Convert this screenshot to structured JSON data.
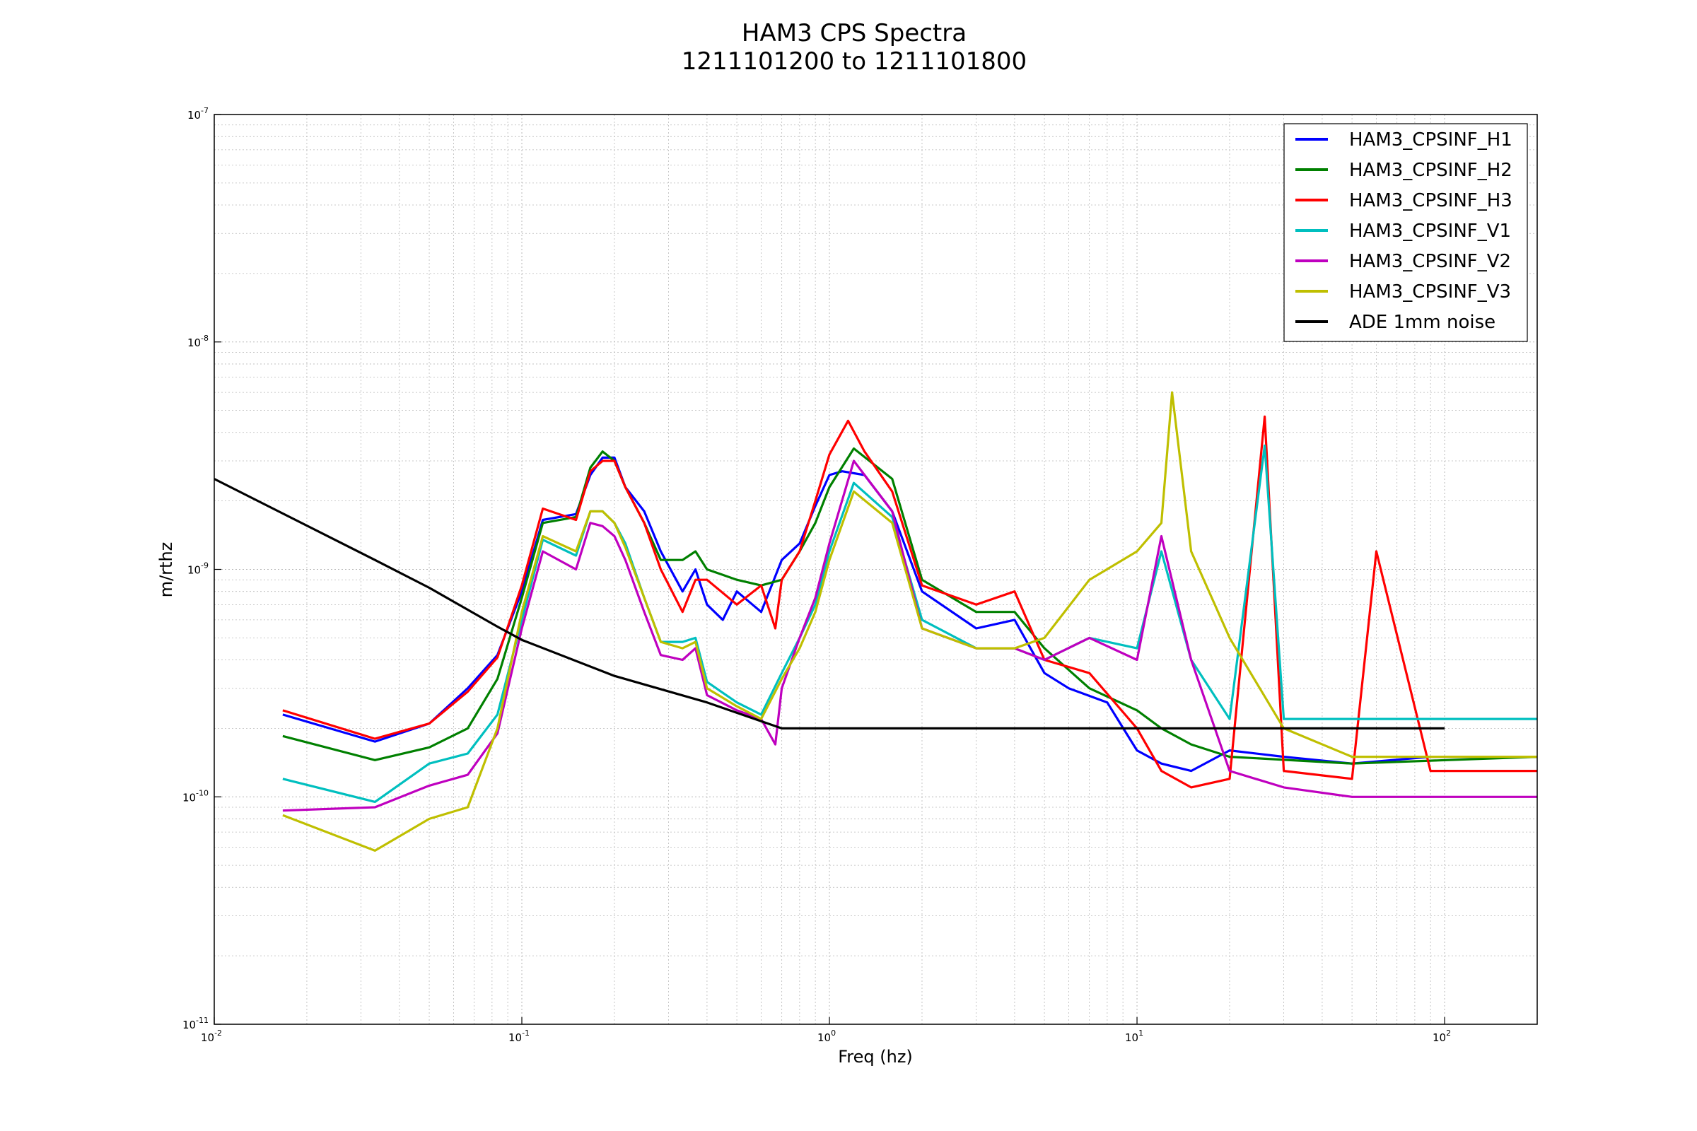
{
  "chart_data": {
    "type": "line",
    "title": "HAM3 CPS Spectra",
    "subtitle": "1211101200 to 1211101800",
    "xlabel": "Freq (hz)",
    "ylabel": "m/rthz",
    "xscale": "log",
    "yscale": "log",
    "xlim": [
      0.01,
      200
    ],
    "ylim": [
      1e-11,
      1e-07
    ],
    "grid": true,
    "legend_position": "top-right",
    "x_ticks": [
      {
        "value": 0.01,
        "base": "10",
        "exp": "-2"
      },
      {
        "value": 0.1,
        "base": "10",
        "exp": "-1"
      },
      {
        "value": 1,
        "base": "10",
        "exp": "0"
      },
      {
        "value": 10,
        "base": "10",
        "exp": "1"
      },
      {
        "value": 100,
        "base": "10",
        "exp": "2"
      }
    ],
    "y_ticks": [
      {
        "value": 1e-11,
        "base": "10",
        "exp": "-11"
      },
      {
        "value": 1e-10,
        "base": "10",
        "exp": "-10"
      },
      {
        "value": 1e-09,
        "base": "10",
        "exp": "-9"
      },
      {
        "value": 1e-08,
        "base": "10",
        "exp": "-8"
      },
      {
        "value": 1e-07,
        "base": "10",
        "exp": "-7"
      }
    ],
    "series": [
      {
        "name": "HAM3_CPSINF_H1",
        "color": "#0000ff",
        "points": [
          [
            0.0167,
            2.3e-10
          ],
          [
            0.0333,
            1.75e-10
          ],
          [
            0.05,
            2.1e-10
          ],
          [
            0.0667,
            3e-10
          ],
          [
            0.0833,
            4.2e-10
          ],
          [
            0.1,
            8e-10
          ],
          [
            0.117,
            1.65e-09
          ],
          [
            0.15,
            1.75e-09
          ],
          [
            0.167,
            2.6e-09
          ],
          [
            0.183,
            3.1e-09
          ],
          [
            0.2,
            3.1e-09
          ],
          [
            0.217,
            2.3e-09
          ],
          [
            0.25,
            1.8e-09
          ],
          [
            0.283,
            1.2e-09
          ],
          [
            0.333,
            8e-10
          ],
          [
            0.367,
            1e-09
          ],
          [
            0.4,
            7e-10
          ],
          [
            0.45,
            6e-10
          ],
          [
            0.5,
            8e-10
          ],
          [
            0.6,
            6.5e-10
          ],
          [
            0.7,
            1.1e-09
          ],
          [
            0.8,
            1.3e-09
          ],
          [
            0.9,
            1.9e-09
          ],
          [
            1.0,
            2.6e-09
          ],
          [
            1.1,
            2.7e-09
          ],
          [
            1.3,
            2.6e-09
          ],
          [
            1.6,
            1.8e-09
          ],
          [
            2.0,
            8e-10
          ],
          [
            3.0,
            5.5e-10
          ],
          [
            4.0,
            6e-10
          ],
          [
            5.0,
            3.5e-10
          ],
          [
            6.0,
            3e-10
          ],
          [
            8.0,
            2.6e-10
          ],
          [
            10.0,
            1.6e-10
          ],
          [
            12.0,
            1.4e-10
          ],
          [
            15.0,
            1.3e-10
          ],
          [
            20.0,
            1.6e-10
          ],
          [
            30.0,
            1.5e-10
          ],
          [
            50.0,
            1.4e-10
          ],
          [
            90.0,
            1.5e-10
          ],
          [
            200.0,
            1.5e-10
          ]
        ]
      },
      {
        "name": "HAM3_CPSINF_H2",
        "color": "#008000",
        "points": [
          [
            0.0167,
            1.85e-10
          ],
          [
            0.0333,
            1.45e-10
          ],
          [
            0.05,
            1.65e-10
          ],
          [
            0.0667,
            2e-10
          ],
          [
            0.0833,
            3.3e-10
          ],
          [
            0.1,
            7.5e-10
          ],
          [
            0.117,
            1.6e-09
          ],
          [
            0.15,
            1.7e-09
          ],
          [
            0.167,
            2.8e-09
          ],
          [
            0.183,
            3.3e-09
          ],
          [
            0.2,
            3e-09
          ],
          [
            0.217,
            2.3e-09
          ],
          [
            0.25,
            1.6e-09
          ],
          [
            0.283,
            1.1e-09
          ],
          [
            0.333,
            1.1e-09
          ],
          [
            0.367,
            1.2e-09
          ],
          [
            0.4,
            1e-09
          ],
          [
            0.5,
            9e-10
          ],
          [
            0.6,
            8.5e-10
          ],
          [
            0.7,
            9e-10
          ],
          [
            0.8,
            1.2e-09
          ],
          [
            0.9,
            1.6e-09
          ],
          [
            1.0,
            2.3e-09
          ],
          [
            1.2,
            3.4e-09
          ],
          [
            1.6,
            2.5e-09
          ],
          [
            2.0,
            9e-10
          ],
          [
            3.0,
            6.5e-10
          ],
          [
            4.0,
            6.5e-10
          ],
          [
            5.0,
            4.5e-10
          ],
          [
            7.0,
            3e-10
          ],
          [
            10.0,
            2.4e-10
          ],
          [
            12.0,
            2e-10
          ],
          [
            15.0,
            1.7e-10
          ],
          [
            20.0,
            1.5e-10
          ],
          [
            50.0,
            1.4e-10
          ],
          [
            200.0,
            1.5e-10
          ]
        ]
      },
      {
        "name": "HAM3_CPSINF_H3",
        "color": "#ff0000",
        "points": [
          [
            0.0167,
            2.4e-10
          ],
          [
            0.0333,
            1.8e-10
          ],
          [
            0.05,
            2.1e-10
          ],
          [
            0.0667,
            2.9e-10
          ],
          [
            0.0833,
            4.1e-10
          ],
          [
            0.1,
            8.5e-10
          ],
          [
            0.117,
            1.85e-09
          ],
          [
            0.15,
            1.65e-09
          ],
          [
            0.167,
            2.7e-09
          ],
          [
            0.183,
            3e-09
          ],
          [
            0.2,
            3e-09
          ],
          [
            0.217,
            2.3e-09
          ],
          [
            0.25,
            1.6e-09
          ],
          [
            0.283,
            1e-09
          ],
          [
            0.333,
            6.5e-10
          ],
          [
            0.367,
            9e-10
          ],
          [
            0.4,
            9e-10
          ],
          [
            0.5,
            7e-10
          ],
          [
            0.6,
            8.5e-10
          ],
          [
            0.667,
            5.5e-10
          ],
          [
            0.7,
            9e-10
          ],
          [
            0.8,
            1.2e-09
          ],
          [
            0.9,
            2e-09
          ],
          [
            1.0,
            3.2e-09
          ],
          [
            1.15,
            4.5e-09
          ],
          [
            1.3,
            3.3e-09
          ],
          [
            1.6,
            2.2e-09
          ],
          [
            2.0,
            8.5e-10
          ],
          [
            3.0,
            7e-10
          ],
          [
            4.0,
            8e-10
          ],
          [
            5.0,
            4e-10
          ],
          [
            7.0,
            3.5e-10
          ],
          [
            10.0,
            2e-10
          ],
          [
            12.0,
            1.3e-10
          ],
          [
            15.0,
            1.1e-10
          ],
          [
            20.0,
            1.2e-10
          ],
          [
            26.0,
            4.7e-09
          ],
          [
            30.0,
            1.3e-10
          ],
          [
            50.0,
            1.2e-10
          ],
          [
            60.0,
            1.2e-09
          ],
          [
            90.0,
            1.3e-10
          ],
          [
            200.0,
            1.3e-10
          ]
        ]
      },
      {
        "name": "HAM3_CPSINF_V1",
        "color": "#00bfbf",
        "points": [
          [
            0.0167,
            1.2e-10
          ],
          [
            0.0333,
            9.5e-11
          ],
          [
            0.05,
            1.4e-10
          ],
          [
            0.0667,
            1.55e-10
          ],
          [
            0.0833,
            2.3e-10
          ],
          [
            0.1,
            6e-10
          ],
          [
            0.117,
            1.35e-09
          ],
          [
            0.15,
            1.15e-09
          ],
          [
            0.167,
            1.8e-09
          ],
          [
            0.183,
            1.8e-09
          ],
          [
            0.2,
            1.6e-09
          ],
          [
            0.217,
            1.3e-09
          ],
          [
            0.25,
            7.5e-10
          ],
          [
            0.283,
            4.8e-10
          ],
          [
            0.333,
            4.8e-10
          ],
          [
            0.367,
            5e-10
          ],
          [
            0.4,
            3.2e-10
          ],
          [
            0.5,
            2.6e-10
          ],
          [
            0.6,
            2.3e-10
          ],
          [
            0.7,
            3.5e-10
          ],
          [
            0.8,
            5e-10
          ],
          [
            0.9,
            7e-10
          ],
          [
            1.0,
            1.2e-09
          ],
          [
            1.2,
            2.4e-09
          ],
          [
            1.6,
            1.7e-09
          ],
          [
            2.0,
            6e-10
          ],
          [
            3.0,
            4.5e-10
          ],
          [
            4.0,
            4.5e-10
          ],
          [
            5.0,
            4e-10
          ],
          [
            7.0,
            5e-10
          ],
          [
            10.0,
            4.5e-10
          ],
          [
            12.0,
            1.2e-09
          ],
          [
            15.0,
            4e-10
          ],
          [
            20.0,
            2.2e-10
          ],
          [
            26.0,
            3.5e-09
          ],
          [
            30.0,
            2.2e-10
          ],
          [
            50.0,
            2.2e-10
          ],
          [
            100.0,
            2.2e-10
          ],
          [
            200.0,
            2.2e-10
          ]
        ]
      },
      {
        "name": "HAM3_CPSINF_V2",
        "color": "#bf00bf",
        "points": [
          [
            0.0167,
            8.7e-11
          ],
          [
            0.0333,
            9e-11
          ],
          [
            0.05,
            1.12e-10
          ],
          [
            0.0667,
            1.25e-10
          ],
          [
            0.0833,
            1.9e-10
          ],
          [
            0.1,
            5.5e-10
          ],
          [
            0.117,
            1.2e-09
          ],
          [
            0.15,
            1e-09
          ],
          [
            0.167,
            1.6e-09
          ],
          [
            0.183,
            1.55e-09
          ],
          [
            0.2,
            1.4e-09
          ],
          [
            0.217,
            1.1e-09
          ],
          [
            0.25,
            6.5e-10
          ],
          [
            0.283,
            4.2e-10
          ],
          [
            0.333,
            4e-10
          ],
          [
            0.367,
            4.5e-10
          ],
          [
            0.4,
            2.8e-10
          ],
          [
            0.5,
            2.4e-10
          ],
          [
            0.6,
            2.2e-10
          ],
          [
            0.667,
            1.7e-10
          ],
          [
            0.7,
            3e-10
          ],
          [
            0.8,
            5e-10
          ],
          [
            0.9,
            7.5e-10
          ],
          [
            1.0,
            1.3e-09
          ],
          [
            1.2,
            3e-09
          ],
          [
            1.6,
            1.8e-09
          ],
          [
            2.0,
            5.5e-10
          ],
          [
            3.0,
            4.5e-10
          ],
          [
            4.0,
            4.5e-10
          ],
          [
            5.0,
            4e-10
          ],
          [
            7.0,
            5e-10
          ],
          [
            10.0,
            4e-10
          ],
          [
            12.0,
            1.4e-09
          ],
          [
            15.0,
            4e-10
          ],
          [
            20.0,
            1.3e-10
          ],
          [
            30.0,
            1.1e-10
          ],
          [
            50.0,
            1e-10
          ],
          [
            100.0,
            1e-10
          ],
          [
            200.0,
            1e-10
          ]
        ]
      },
      {
        "name": "HAM3_CPSINF_V3",
        "color": "#bfbf00",
        "points": [
          [
            0.0167,
            8.3e-11
          ],
          [
            0.0333,
            5.8e-11
          ],
          [
            0.05,
            8e-11
          ],
          [
            0.0667,
            9e-11
          ],
          [
            0.0833,
            2e-10
          ],
          [
            0.1,
            6.5e-10
          ],
          [
            0.117,
            1.4e-09
          ],
          [
            0.15,
            1.2e-09
          ],
          [
            0.167,
            1.8e-09
          ],
          [
            0.183,
            1.8e-09
          ],
          [
            0.2,
            1.6e-09
          ],
          [
            0.217,
            1.25e-09
          ],
          [
            0.25,
            7.5e-10
          ],
          [
            0.283,
            4.8e-10
          ],
          [
            0.333,
            4.5e-10
          ],
          [
            0.367,
            4.8e-10
          ],
          [
            0.4,
            3e-10
          ],
          [
            0.5,
            2.5e-10
          ],
          [
            0.6,
            2.2e-10
          ],
          [
            0.7,
            3.3e-10
          ],
          [
            0.8,
            4.5e-10
          ],
          [
            0.9,
            6.5e-10
          ],
          [
            1.0,
            1.1e-09
          ],
          [
            1.2,
            2.2e-09
          ],
          [
            1.6,
            1.6e-09
          ],
          [
            2.0,
            5.5e-10
          ],
          [
            3.0,
            4.5e-10
          ],
          [
            4.0,
            4.5e-10
          ],
          [
            5.0,
            5e-10
          ],
          [
            7.0,
            9e-10
          ],
          [
            10.0,
            1.2e-09
          ],
          [
            12.0,
            1.6e-09
          ],
          [
            13.0,
            6e-09
          ],
          [
            15.0,
            1.2e-09
          ],
          [
            20.0,
            5e-10
          ],
          [
            30.0,
            2e-10
          ],
          [
            50.0,
            1.5e-10
          ],
          [
            100.0,
            1.5e-10
          ],
          [
            200.0,
            1.5e-10
          ]
        ]
      },
      {
        "name": "ADE 1mm noise",
        "color": "#000000",
        "points": [
          [
            0.01,
            2.5e-09
          ],
          [
            0.0333,
            1.1e-09
          ],
          [
            0.05,
            8.3e-10
          ],
          [
            0.0833,
            5.6e-10
          ],
          [
            0.1,
            4.9e-10
          ],
          [
            0.2,
            3.4e-10
          ],
          [
            0.4,
            2.6e-10
          ],
          [
            0.7,
            2e-10
          ],
          [
            1.0,
            2e-10
          ],
          [
            10.0,
            2e-10
          ],
          [
            100.0,
            2e-10
          ]
        ]
      }
    ]
  }
}
